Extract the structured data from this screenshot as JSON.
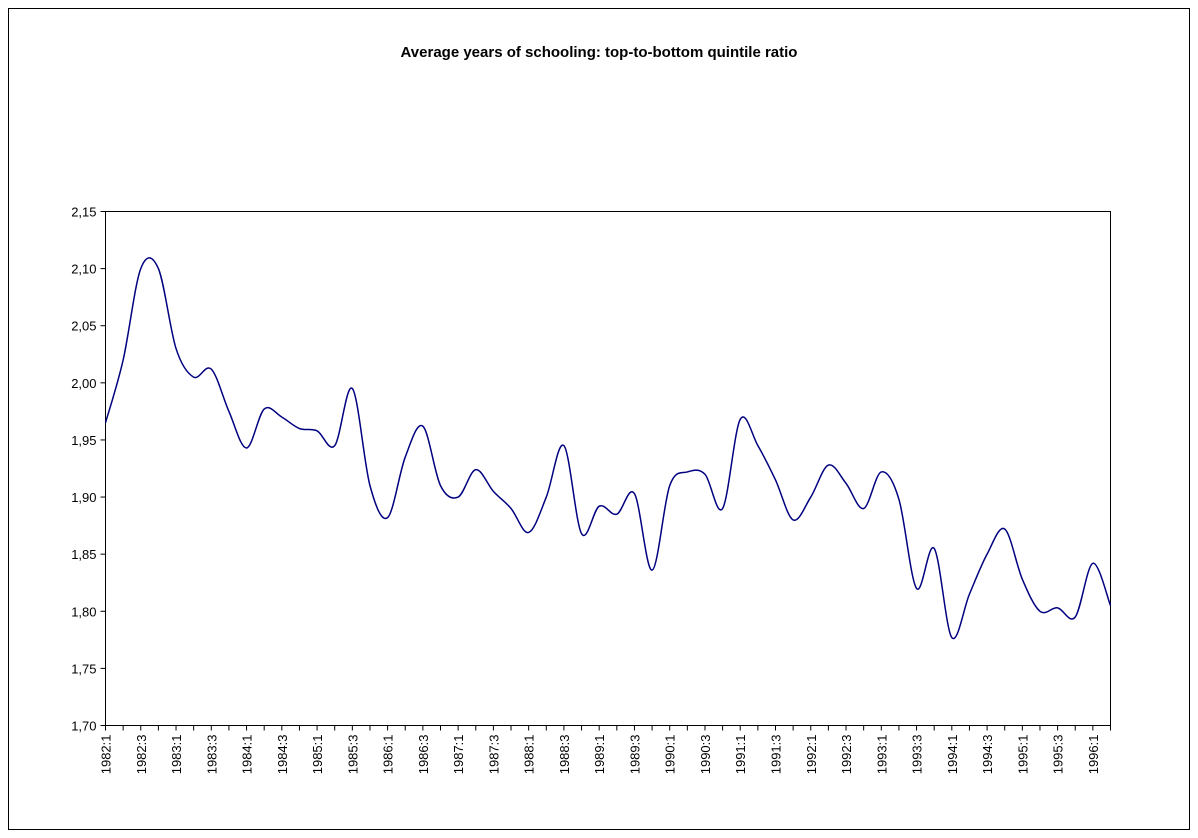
{
  "chart_data": {
    "type": "line",
    "title": "Average years of schooling: top-to-bottom quintile ratio",
    "categories": [
      "1982:1",
      null,
      "1982:3",
      null,
      "1983:1",
      null,
      "1983:3",
      null,
      "1984:1",
      null,
      "1984:3",
      null,
      "1985:1",
      null,
      "1985:3",
      null,
      "1986:1",
      null,
      "1986:3",
      null,
      "1987:1",
      null,
      "1987:3",
      null,
      "1988:1",
      null,
      "1988:3",
      null,
      "1989:1",
      null,
      "1989:3",
      null,
      "1990:1",
      null,
      "1990:3",
      null,
      "1991:1",
      null,
      "1991:3",
      null,
      "1992:1",
      null,
      "1992:3",
      null,
      "1993:1",
      null,
      "1993:3",
      null,
      "1994:1",
      null,
      "1994:3",
      null,
      "1995:1",
      null,
      "1995:3",
      null,
      "1996:1",
      null
    ],
    "values": [
      1.965,
      2.02,
      2.1,
      2.1,
      2.03,
      2.005,
      2.012,
      1.975,
      1.943,
      1.977,
      1.97,
      1.96,
      1.958,
      1.945,
      1.995,
      1.91,
      1.882,
      1.935,
      1.962,
      1.91,
      1.9,
      1.924,
      1.905,
      1.89,
      1.869,
      1.9,
      1.945,
      1.868,
      1.892,
      1.885,
      1.903,
      1.836,
      1.91,
      1.922,
      1.92,
      1.89,
      1.968,
      1.945,
      1.915,
      1.88,
      1.9,
      1.928,
      1.912,
      1.89,
      1.922,
      1.898,
      1.82,
      1.855,
      1.777,
      1.815,
      1.85,
      1.872,
      1.828,
      1.8,
      1.803,
      1.795,
      1.842,
      1.805
    ],
    "color": "#000080",
    "ylim": [
      1.7,
      2.15
    ],
    "yticks": [
      {
        "value": 1.7,
        "label": "1,70"
      },
      {
        "value": 1.75,
        "label": "1,75"
      },
      {
        "value": 1.8,
        "label": "1,80"
      },
      {
        "value": 1.85,
        "label": "1,85"
      },
      {
        "value": 1.9,
        "label": "1,90"
      },
      {
        "value": 1.95,
        "label": "1,95"
      },
      {
        "value": 2.0,
        "label": "2,00"
      },
      {
        "value": 2.05,
        "label": "2,05"
      },
      {
        "value": 2.1,
        "label": "2,10"
      },
      {
        "value": 2.15,
        "label": "2,15"
      }
    ]
  }
}
